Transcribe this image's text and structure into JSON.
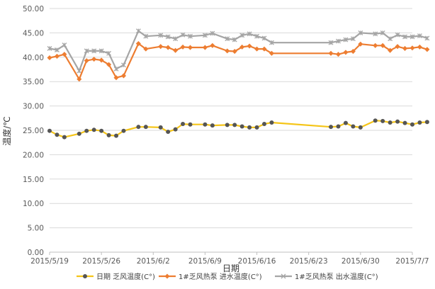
{
  "chart_data": {
    "type": "line",
    "title": "",
    "xlabel": "日期",
    "ylabel": "温度/℃",
    "ylim": [
      0,
      50
    ],
    "y_ticks": [
      "0.00",
      "5.00",
      "10.00",
      "15.00",
      "20.00",
      "25.00",
      "30.00",
      "35.00",
      "40.00",
      "45.00",
      "50.00"
    ],
    "x_ticks": [
      "2015/5/19",
      "2015/5/26",
      "2015/6/2",
      "2015/6/9",
      "2015/6/16",
      "2015/6/23",
      "2015/6/30",
      "2015/7/7"
    ],
    "x_range": [
      "2015/5/19",
      "2015/7/7"
    ],
    "grid": "horizontal",
    "legend_position": "bottom",
    "series": [
      {
        "name": "日期 乏风温度(C°)",
        "color": "#F5C518",
        "marker_color": "#555555",
        "points": [
          [
            "2015/5/19",
            24.9
          ],
          [
            "2015/5/20",
            24.1
          ],
          [
            "2015/5/21",
            23.6
          ],
          [
            "2015/5/23",
            24.3
          ],
          [
            "2015/5/24",
            24.9
          ],
          [
            "2015/5/25",
            25.1
          ],
          [
            "2015/5/26",
            24.9
          ],
          [
            "2015/5/27",
            24.0
          ],
          [
            "2015/5/28",
            23.9
          ],
          [
            "2015/5/29",
            24.9
          ],
          [
            "2015/5/31",
            25.7
          ],
          [
            "2015/6/1",
            25.7
          ],
          [
            "2015/6/3",
            25.6
          ],
          [
            "2015/6/4",
            24.7
          ],
          [
            "2015/6/5",
            25.2
          ],
          [
            "2015/6/6",
            26.3
          ],
          [
            "2015/6/7",
            26.2
          ],
          [
            "2015/6/9",
            26.2
          ],
          [
            "2015/6/10",
            26.0
          ],
          [
            "2015/6/12",
            26.1
          ],
          [
            "2015/6/13",
            26.1
          ],
          [
            "2015/6/14",
            25.8
          ],
          [
            "2015/6/15",
            25.6
          ],
          [
            "2015/6/16",
            25.6
          ],
          [
            "2015/6/17",
            26.3
          ],
          [
            "2015/6/18",
            26.6
          ],
          [
            "2015/6/26",
            25.7
          ],
          [
            "2015/6/27",
            25.8
          ],
          [
            "2015/6/28",
            26.5
          ],
          [
            "2015/6/29",
            25.8
          ],
          [
            "2015/6/30",
            25.6
          ],
          [
            "2015/7/2",
            27.0
          ],
          [
            "2015/7/3",
            26.9
          ],
          [
            "2015/7/4",
            26.6
          ],
          [
            "2015/7/5",
            26.8
          ],
          [
            "2015/7/6",
            26.5
          ],
          [
            "2015/7/7",
            26.2
          ],
          [
            "2015/7/8",
            26.6
          ],
          [
            "2015/7/9",
            26.7
          ]
        ]
      },
      {
        "name": "1#乏风热泵 进水温度(C°)",
        "color": "#ED7D31",
        "points": [
          [
            "2015/5/19",
            39.9
          ],
          [
            "2015/5/20",
            40.2
          ],
          [
            "2015/5/21",
            40.6
          ],
          [
            "2015/5/23",
            35.5
          ],
          [
            "2015/5/24",
            39.3
          ],
          [
            "2015/5/25",
            39.6
          ],
          [
            "2015/5/26",
            39.4
          ],
          [
            "2015/5/27",
            38.5
          ],
          [
            "2015/5/28",
            35.8
          ],
          [
            "2015/5/29",
            36.2
          ],
          [
            "2015/5/31",
            42.8
          ],
          [
            "2015/6/1",
            41.7
          ],
          [
            "2015/6/3",
            42.2
          ],
          [
            "2015/6/4",
            42.0
          ],
          [
            "2015/6/5",
            41.4
          ],
          [
            "2015/6/6",
            42.1
          ],
          [
            "2015/6/7",
            42.0
          ],
          [
            "2015/6/9",
            42.0
          ],
          [
            "2015/6/10",
            42.4
          ],
          [
            "2015/6/12",
            41.3
          ],
          [
            "2015/6/13",
            41.2
          ],
          [
            "2015/6/14",
            42.1
          ],
          [
            "2015/6/15",
            42.3
          ],
          [
            "2015/6/16",
            41.7
          ],
          [
            "2015/6/17",
            41.7
          ],
          [
            "2015/6/18",
            40.8
          ],
          [
            "2015/6/26",
            40.8
          ],
          [
            "2015/6/27",
            40.6
          ],
          [
            "2015/6/28",
            41.0
          ],
          [
            "2015/6/29",
            41.2
          ],
          [
            "2015/6/30",
            42.7
          ],
          [
            "2015/7/2",
            42.4
          ],
          [
            "2015/7/3",
            42.4
          ],
          [
            "2015/7/4",
            41.4
          ],
          [
            "2015/7/5",
            42.2
          ],
          [
            "2015/7/6",
            41.8
          ],
          [
            "2015/7/7",
            41.9
          ],
          [
            "2015/7/8",
            42.1
          ],
          [
            "2015/7/9",
            41.6
          ]
        ]
      },
      {
        "name": "1#乏风热泵 出水温度(C°)",
        "color": "#A5A5A5",
        "points": [
          [
            "2015/5/19",
            41.8
          ],
          [
            "2015/5/20",
            41.5
          ],
          [
            "2015/5/21",
            42.5
          ],
          [
            "2015/5/23",
            37.2
          ],
          [
            "2015/5/24",
            41.3
          ],
          [
            "2015/5/25",
            41.3
          ],
          [
            "2015/5/26",
            41.3
          ],
          [
            "2015/5/27",
            40.8
          ],
          [
            "2015/5/28",
            37.6
          ],
          [
            "2015/5/29",
            38.4
          ],
          [
            "2015/5/31",
            45.4
          ],
          [
            "2015/6/1",
            44.3
          ],
          [
            "2015/6/3",
            44.5
          ],
          [
            "2015/6/4",
            44.2
          ],
          [
            "2015/6/5",
            43.8
          ],
          [
            "2015/6/6",
            44.6
          ],
          [
            "2015/6/7",
            44.3
          ],
          [
            "2015/6/9",
            44.5
          ],
          [
            "2015/6/10",
            44.9
          ],
          [
            "2015/6/12",
            43.8
          ],
          [
            "2015/6/13",
            43.6
          ],
          [
            "2015/6/14",
            44.5
          ],
          [
            "2015/6/15",
            44.8
          ],
          [
            "2015/6/16",
            44.3
          ],
          [
            "2015/6/17",
            43.9
          ],
          [
            "2015/6/18",
            43.0
          ],
          [
            "2015/6/26",
            43.0
          ],
          [
            "2015/6/27",
            43.3
          ],
          [
            "2015/6/28",
            43.6
          ],
          [
            "2015/6/29",
            43.8
          ],
          [
            "2015/6/30",
            45.0
          ],
          [
            "2015/7/2",
            44.8
          ],
          [
            "2015/7/3",
            45.0
          ],
          [
            "2015/7/4",
            43.8
          ],
          [
            "2015/7/5",
            44.6
          ],
          [
            "2015/7/6",
            44.2
          ],
          [
            "2015/7/7",
            44.2
          ],
          [
            "2015/7/8",
            44.4
          ],
          [
            "2015/7/9",
            43.9
          ]
        ]
      }
    ]
  }
}
